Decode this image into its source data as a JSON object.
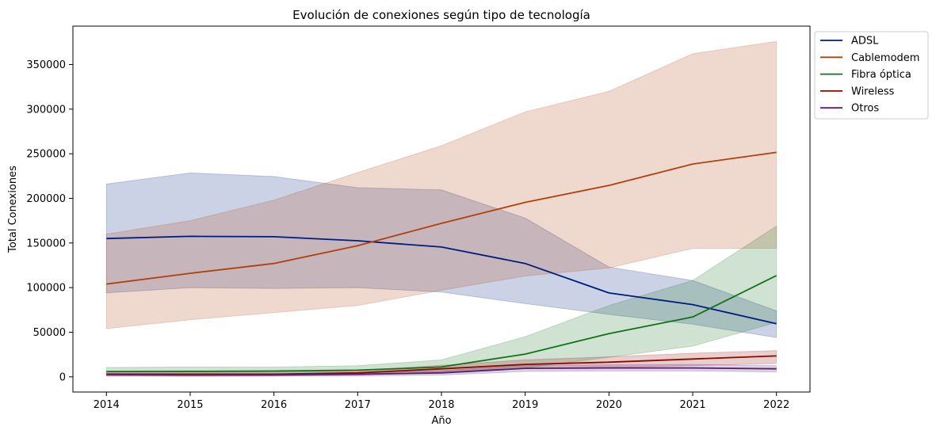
{
  "chart_data": {
    "type": "line",
    "title": "Evolución de conexiones según tipo de tecnología",
    "xlabel": "Año",
    "ylabel": "Total Conexiones",
    "x": [
      2014,
      2015,
      2016,
      2017,
      2018,
      2019,
      2020,
      2021,
      2022
    ],
    "xlim": [
      2013.6,
      2022.4
    ],
    "ylim": [
      -17000,
      393000
    ],
    "yticks": [
      0,
      50000,
      100000,
      150000,
      200000,
      250000,
      300000,
      350000
    ],
    "grid": false,
    "legend_position": "outside-top-right",
    "series": [
      {
        "name": "ADSL",
        "color": "#001c7f",
        "values": [
          155000,
          157500,
          157000,
          152500,
          145500,
          127000,
          94000,
          81000,
          59500
        ],
        "lower": [
          94000,
          100000,
          99000,
          100000,
          95000,
          82000,
          70000,
          59000,
          44000
        ],
        "upper": [
          216000,
          228500,
          224500,
          212000,
          209500,
          178000,
          123000,
          108000,
          74000
        ]
      },
      {
        "name": "Cablemodem",
        "color": "#b1400d",
        "values": [
          104000,
          116000,
          127000,
          147000,
          172000,
          195500,
          214500,
          238500,
          251500
        ],
        "lower": [
          54000,
          64000,
          72000,
          80000,
          97000,
          113000,
          122000,
          144000,
          144000
        ],
        "upper": [
          160000,
          175000,
          198000,
          229000,
          259000,
          297000,
          320000,
          362000,
          376000
        ]
      },
      {
        "name": "Fibra óptica",
        "color": "#12711c",
        "values": [
          6000,
          6200,
          6500,
          7500,
          11000,
          25500,
          48500,
          67000,
          113500
        ],
        "lower": [
          2000,
          1500,
          2000,
          3000,
          4500,
          10000,
          22000,
          34500,
          61000
        ],
        "upper": [
          10500,
          11000,
          11000,
          12500,
          19000,
          45000,
          80000,
          108000,
          169000
        ]
      },
      {
        "name": "Wireless",
        "color": "#8c0800",
        "values": [
          3000,
          3000,
          3000,
          4500,
          9000,
          14000,
          16500,
          20000,
          23500
        ],
        "lower": [
          1000,
          800,
          1000,
          2000,
          5000,
          9500,
          10500,
          12500,
          15000
        ],
        "upper": [
          5500,
          5500,
          5500,
          7000,
          13000,
          19000,
          22500,
          26500,
          29500
        ]
      },
      {
        "name": "Otros",
        "color": "#591e71",
        "values": [
          2500,
          2200,
          2300,
          3000,
          4500,
          9500,
          10000,
          10000,
          9000
        ],
        "lower": [
          800,
          700,
          800,
          1000,
          2000,
          6000,
          6500,
          6500,
          5500
        ],
        "upper": [
          4000,
          3800,
          3800,
          4500,
          7000,
          13000,
          13500,
          14000,
          12500
        ]
      }
    ]
  }
}
